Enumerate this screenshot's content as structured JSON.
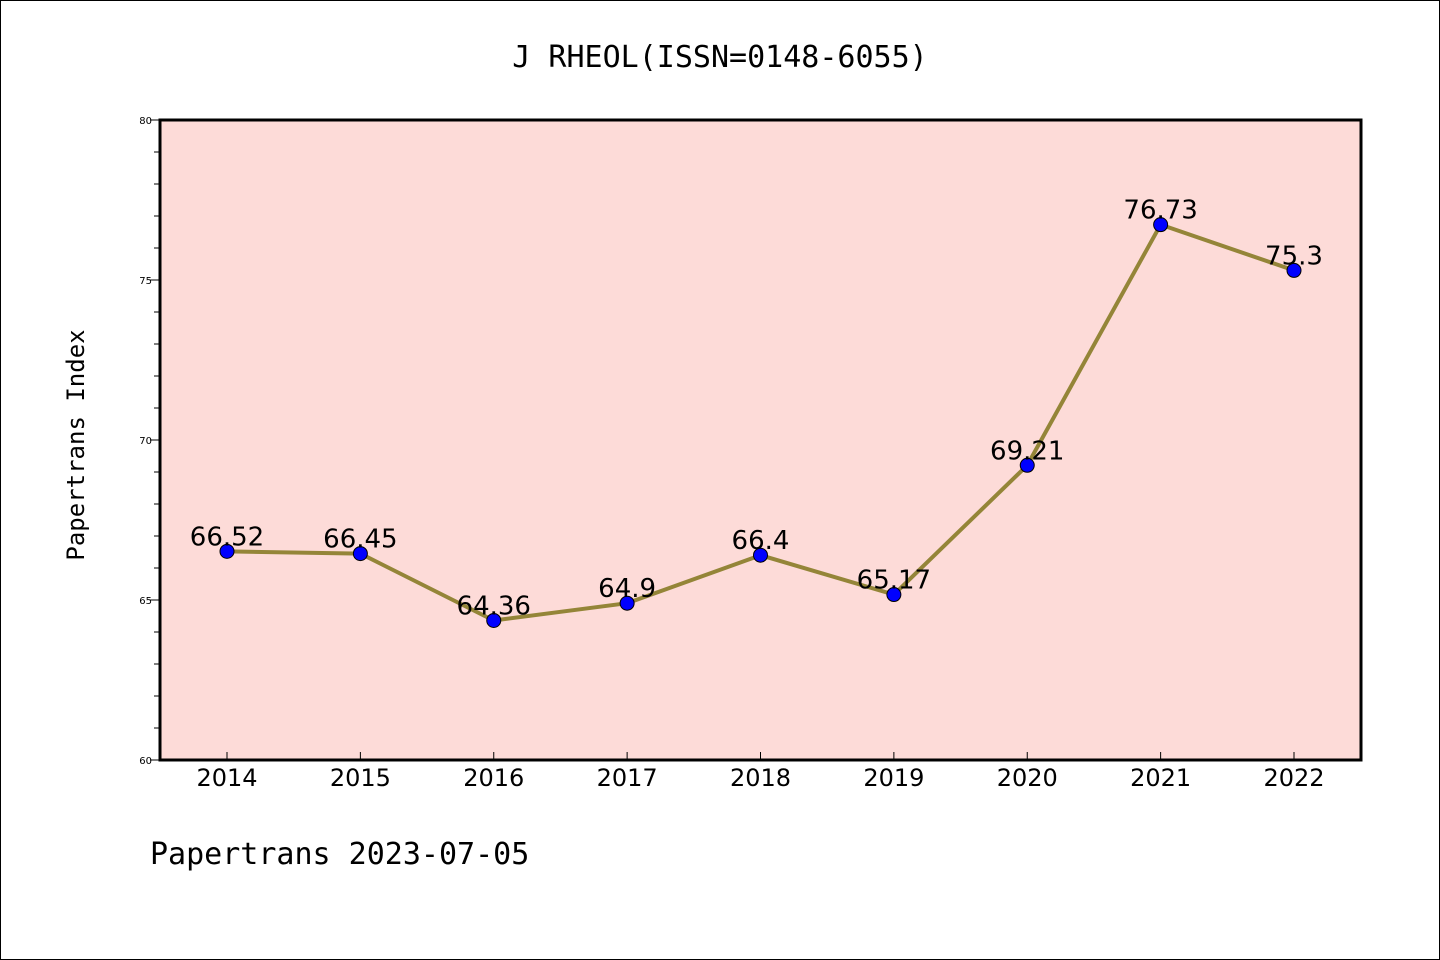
{
  "chart_data": {
    "type": "line",
    "title": "J RHEOL(ISSN=0148-6055)",
    "xlabel": "",
    "ylabel": "Papertrans Index",
    "categories": [
      "2014",
      "2015",
      "2016",
      "2017",
      "2018",
      "2019",
      "2020",
      "2021",
      "2022"
    ],
    "series": [
      {
        "values": [
          66.52,
          66.45,
          64.36,
          64.9,
          66.4,
          65.17,
          69.21,
          76.73,
          75.3
        ]
      }
    ],
    "data_labels": [
      "66.52",
      "66.45",
      "64.36",
      "64.9",
      "66.4",
      "65.17",
      "69.21",
      "76.73",
      "75.3"
    ],
    "ylim": [
      60,
      80
    ],
    "yticks": [
      "60",
      "65",
      "70",
      "75",
      "80"
    ],
    "grid": false,
    "legend": "none",
    "colors": {
      "plot_background": "#fddbd8",
      "line": "#948538",
      "marker": "#0000ff"
    }
  },
  "footer": {
    "text": "Papertrans 2023-07-05"
  }
}
